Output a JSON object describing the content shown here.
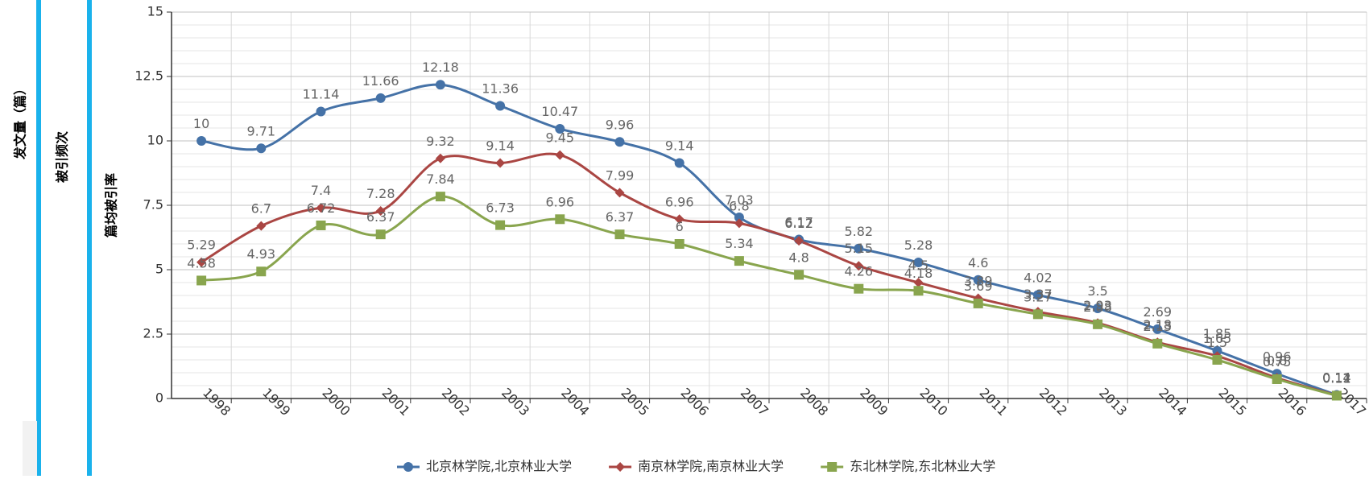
{
  "chart_data": {
    "type": "line",
    "axis_titles": [
      "发文量（篇）",
      "被引频次",
      "篇均被引率"
    ],
    "categories": [
      "1998",
      "1999",
      "2000",
      "2001",
      "2002",
      "2003",
      "2004",
      "2005",
      "2006",
      "2007",
      "2008",
      "2009",
      "2010",
      "2011",
      "2012",
      "2013",
      "2014",
      "2015",
      "2016",
      "2017"
    ],
    "series": [
      {
        "name": "北京林学院,北京林业大学",
        "color": "#4572a7",
        "values": [
          10,
          9.71,
          11.14,
          11.66,
          12.18,
          11.36,
          10.47,
          9.96,
          9.14,
          7.03,
          6.17,
          5.82,
          5.28,
          4.6,
          4.02,
          3.5,
          2.69,
          1.85,
          0.96,
          0.14
        ]
      },
      {
        "name": "南京林学院,南京林业大学",
        "color": "#aa4643",
        "values": [
          5.29,
          6.7,
          7.4,
          7.28,
          9.32,
          9.14,
          9.45,
          7.99,
          6.96,
          6.8,
          6.12,
          5.15,
          4.5,
          3.89,
          3.37,
          2.93,
          2.18,
          1.65,
          0.8,
          0.12
        ]
      },
      {
        "name": "东北林学院,东北林业大学",
        "color": "#89a54e",
        "values": [
          4.58,
          4.93,
          6.72,
          6.37,
          7.84,
          6.73,
          6.96,
          6.37,
          6,
          5.34,
          4.8,
          4.26,
          4.18,
          3.69,
          3.27,
          2.88,
          2.13,
          1.5,
          0.75,
          0.11
        ]
      }
    ],
    "ylim": [
      0,
      15
    ],
    "yticks": [
      0,
      2.5,
      5,
      7.5,
      10,
      12.5,
      15
    ],
    "grid": true
  }
}
